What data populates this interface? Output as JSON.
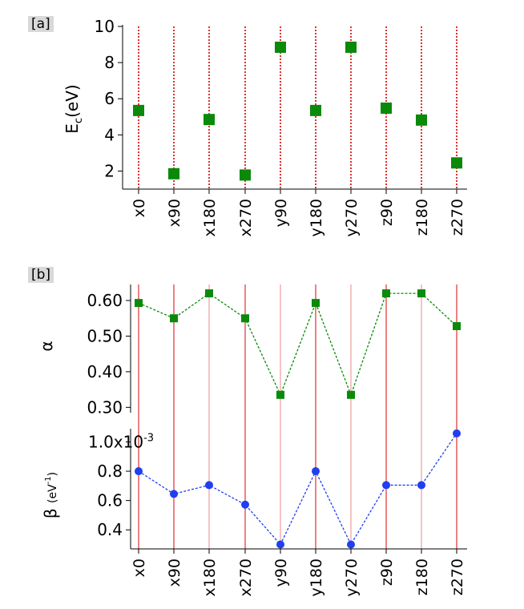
{
  "panel_a": {
    "tag": "[a]"
  },
  "panel_b": {
    "tag": "[b]"
  },
  "colors": {
    "green": "#0a8a0a",
    "blue": "#1f3ff0",
    "red_grid": "#e03030",
    "light_red_grid": "#f29a9a"
  },
  "chart_data": [
    {
      "type": "scatter",
      "panel": "a",
      "categories": [
        "x0",
        "x90",
        "x180",
        "x270",
        "y90",
        "y180",
        "y270",
        "z90",
        "z180",
        "z270"
      ],
      "series": [
        {
          "values": [
            5.35,
            1.85,
            4.85,
            1.78,
            8.85,
            5.35,
            8.85,
            5.48,
            4.82,
            2.45
          ],
          "marker": "square",
          "color": "#0a8a0a"
        }
      ],
      "ylabel_main": "E",
      "ylabel_sub": "c",
      "ylabel_unit": "(eV)",
      "ylim": [
        1,
        10
      ],
      "yticks": [
        2,
        4,
        6,
        8,
        10
      ],
      "grid": "vertical dotted red lines at each category"
    },
    {
      "type": "line",
      "panel": "b-top",
      "categories": [
        "x0",
        "x90",
        "x180",
        "x270",
        "y90",
        "y180",
        "y270",
        "z90",
        "z180",
        "z270"
      ],
      "series": [
        {
          "values": [
            0.593,
            0.55,
            0.62,
            0.55,
            0.335,
            0.593,
            0.335,
            0.62,
            0.62,
            0.528
          ],
          "marker": "square",
          "line": "dashed",
          "color": "#0a8a0a"
        }
      ],
      "ylabel": "α",
      "ylim": [
        0.285,
        0.645
      ],
      "yticks": [
        "0.30",
        "0.40",
        "0.50",
        "0.60"
      ],
      "grid": "vertical red lines at each category"
    },
    {
      "type": "line",
      "panel": "b-bottom",
      "categories": [
        "x0",
        "x90",
        "x180",
        "x270",
        "y90",
        "y180",
        "y270",
        "z90",
        "z180",
        "z270"
      ],
      "series": [
        {
          "values": [
            0.8,
            0.645,
            0.705,
            0.572,
            0.3,
            0.8,
            0.3,
            0.705,
            0.705,
            1.058
          ],
          "marker": "circle",
          "line": "dashed",
          "color": "#1f3ff0"
        }
      ],
      "ylabel_main": "β",
      "ylabel_unit": "(eV",
      "ylabel_exp": "-1",
      "ylabel_close": ")",
      "ylim": [
        0.27,
        1.09
      ],
      "ytick_labels": [
        "0.4",
        "0.6",
        "0.8"
      ],
      "ytick_top_label": "1.0x10",
      "ytick_top_exp": "-3",
      "grid": "vertical red lines at each category"
    }
  ]
}
